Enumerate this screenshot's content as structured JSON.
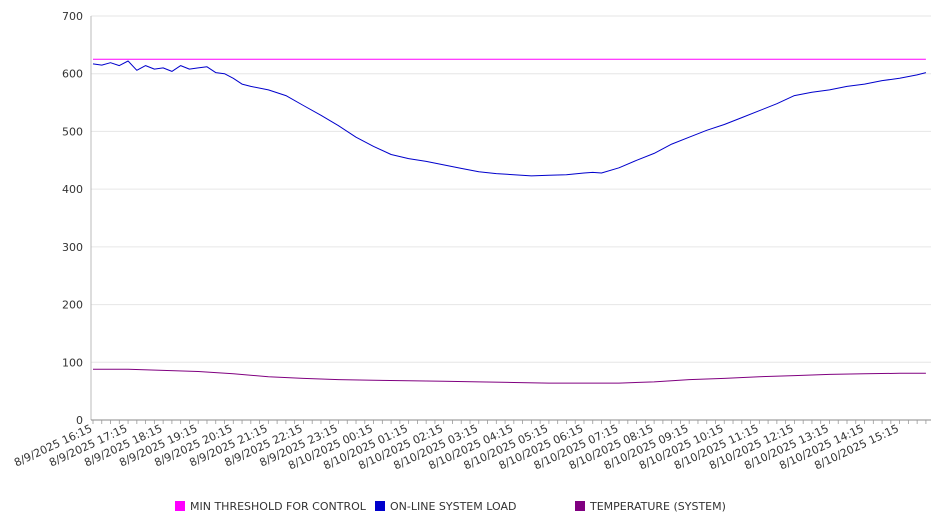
{
  "chart_data": {
    "type": "line",
    "ylim": [
      0,
      700
    ],
    "y_ticks": [
      "0",
      "100",
      "200",
      "300",
      "400",
      "500",
      "600",
      "700"
    ],
    "x_tick_labels": [
      "8/9/2025 16:15",
      "8/9/2025 17:15",
      "8/9/2025 18:15",
      "8/9/2025 19:15",
      "8/9/2025 20:15",
      "8/9/2025 21:15",
      "8/9/2025 22:15",
      "8/9/2025 23:15",
      "8/10/2025 00:15",
      "8/10/2025 01:15",
      "8/10/2025 02:15",
      "8/10/2025 03:15",
      "8/10/2025 04:15",
      "8/10/2025 05:15",
      "8/10/2025 06:15",
      "8/10/2025 07:15",
      "8/10/2025 08:15",
      "8/10/2025 09:15",
      "8/10/2025 10:15",
      "8/10/2025 11:15",
      "8/10/2025 12:15",
      "8/10/2025 13:15",
      "8/10/2025 14:15",
      "8/10/2025 15:15"
    ],
    "grid": true,
    "legend_position": "bottom",
    "series": [
      {
        "name": "MIN THRESHOLD FOR CONTROL",
        "color": "#ff00ff",
        "x": [
          "8/9/2025 16:15",
          "8/10/2025 16:00"
        ],
        "y": [
          625,
          625
        ]
      },
      {
        "name": "ON-LINE SYSTEM LOAD",
        "color": "#0000cc",
        "x": [
          "8/9/2025 16:15",
          "8/9/2025 16:30",
          "8/9/2025 16:45",
          "8/9/2025 17:00",
          "8/9/2025 17:15",
          "8/9/2025 17:30",
          "8/9/2025 17:45",
          "8/9/2025 18:00",
          "8/9/2025 18:15",
          "8/9/2025 18:30",
          "8/9/2025 18:45",
          "8/9/2025 19:00",
          "8/9/2025 19:15",
          "8/9/2025 19:30",
          "8/9/2025 19:45",
          "8/9/2025 20:00",
          "8/9/2025 20:15",
          "8/9/2025 20:30",
          "8/9/2025 20:45",
          "8/9/2025 21:15",
          "8/9/2025 21:45",
          "8/9/2025 22:15",
          "8/9/2025 22:45",
          "8/9/2025 23:15",
          "8/9/2025 23:45",
          "8/10/2025 00:15",
          "8/10/2025 00:45",
          "8/10/2025 01:15",
          "8/10/2025 01:45",
          "8/10/2025 02:15",
          "8/10/2025 02:45",
          "8/10/2025 03:15",
          "8/10/2025 03:45",
          "8/10/2025 04:15",
          "8/10/2025 04:45",
          "8/10/2025 05:15",
          "8/10/2025 05:45",
          "8/10/2025 06:15",
          "8/10/2025 06:30",
          "8/10/2025 06:45",
          "8/10/2025 07:15",
          "8/10/2025 07:45",
          "8/10/2025 08:15",
          "8/10/2025 08:45",
          "8/10/2025 09:15",
          "8/10/2025 09:45",
          "8/10/2025 10:15",
          "8/10/2025 10:45",
          "8/10/2025 11:15",
          "8/10/2025 11:45",
          "8/10/2025 12:15",
          "8/10/2025 12:45",
          "8/10/2025 13:15",
          "8/10/2025 13:45",
          "8/10/2025 14:15",
          "8/10/2025 14:45",
          "8/10/2025 15:15",
          "8/10/2025 15:45",
          "8/10/2025 16:00"
        ],
        "y": [
          617,
          615,
          619,
          614,
          622,
          606,
          614,
          608,
          610,
          604,
          614,
          608,
          610,
          612,
          602,
          600,
          592,
          582,
          578,
          572,
          562,
          545,
          528,
          510,
          490,
          474,
          460,
          453,
          448,
          442,
          436,
          430,
          427,
          425,
          423,
          424,
          425,
          428,
          429,
          428,
          437,
          450,
          462,
          478,
          490,
          502,
          512,
          524,
          536,
          548,
          562,
          568,
          572,
          578,
          582,
          588,
          592,
          598,
          602
        ]
      },
      {
        "name": "TEMPERATURE (SYSTEM)",
        "color": "#800080",
        "x": [
          "8/9/2025 16:15",
          "8/9/2025 17:15",
          "8/9/2025 18:15",
          "8/9/2025 19:15",
          "8/9/2025 20:15",
          "8/9/2025 21:15",
          "8/9/2025 22:15",
          "8/9/2025 23:15",
          "8/10/2025 00:15",
          "8/10/2025 01:15",
          "8/10/2025 02:15",
          "8/10/2025 03:15",
          "8/10/2025 04:15",
          "8/10/2025 05:15",
          "8/10/2025 06:15",
          "8/10/2025 07:15",
          "8/10/2025 08:15",
          "8/10/2025 09:15",
          "8/10/2025 10:15",
          "8/10/2025 11:15",
          "8/10/2025 12:15",
          "8/10/2025 13:15",
          "8/10/2025 14:15",
          "8/10/2025 15:15",
          "8/10/2025 16:00"
        ],
        "y": [
          88,
          88,
          86,
          84,
          80,
          75,
          72,
          70,
          69,
          68,
          67,
          66,
          65,
          64,
          64,
          64,
          66,
          70,
          72,
          75,
          77,
          79,
          80,
          81,
          81
        ]
      }
    ]
  }
}
